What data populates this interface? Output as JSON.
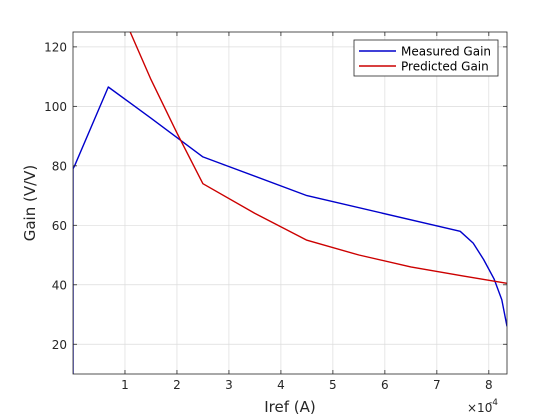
{
  "chart_data": {
    "type": "line",
    "xlabel": "Iref (A)",
    "ylabel": "Gain (V/V)",
    "x_exponent_label": "×10",
    "x_exponent": "-4",
    "xlim": [
      0,
      8.35
    ],
    "ylim": [
      10,
      125
    ],
    "xticks": [
      1,
      2,
      3,
      4,
      5,
      6,
      7,
      8
    ],
    "yticks": [
      20,
      40,
      60,
      80,
      100,
      120
    ],
    "grid": true,
    "legend_position": "top-right",
    "series": [
      {
        "name": "Measured Gain",
        "color": "#0000cc",
        "x": [
          0,
          0,
          0.03,
          0.68,
          1.5,
          2.5,
          4.5,
          7.45,
          7.7,
          7.9,
          8.1,
          8.25,
          8.35
        ],
        "y": [
          10,
          79,
          80,
          106.5,
          96,
          83,
          70,
          58,
          54,
          48.5,
          42,
          35,
          26
        ]
      },
      {
        "name": "Predicted Gain",
        "color": "#cc0000",
        "x": [
          1.1,
          1.5,
          2.0,
          2.5,
          3.5,
          4.5,
          5.5,
          6.5,
          7.5,
          8.35
        ],
        "y": [
          125,
          109,
          91,
          74,
          64,
          55,
          50,
          46,
          43,
          40.5
        ]
      }
    ]
  }
}
